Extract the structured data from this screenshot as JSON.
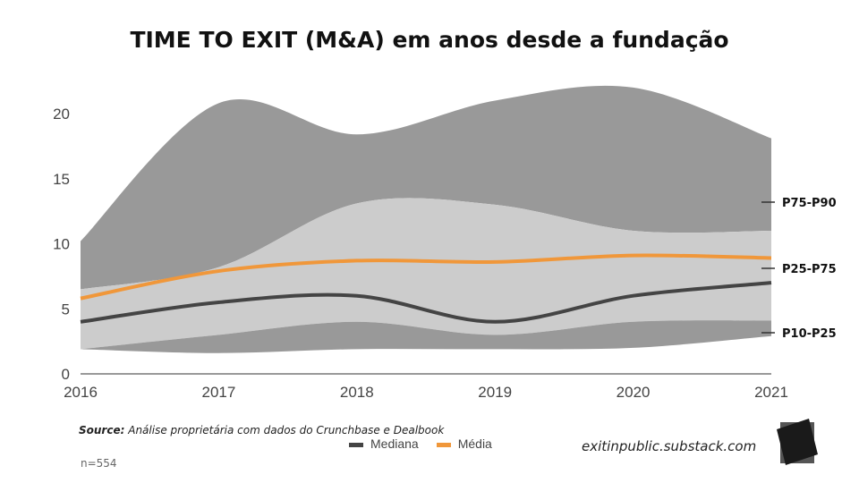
{
  "chart_data": {
    "type": "area",
    "title": "TIME TO EXIT (M&A) em anos desde a fundação",
    "x": [
      2016,
      2017,
      2018,
      2019,
      2020,
      2021
    ],
    "ylim": [
      0,
      22
    ],
    "yticks": [
      0,
      5,
      10,
      15,
      20
    ],
    "bands": [
      {
        "name": "P75-P90",
        "lower": [
          6.5,
          8.2,
          13.1,
          13.0,
          11.0,
          11.0
        ],
        "upper": [
          10.2,
          20.8,
          18.4,
          21.0,
          22.0,
          18.1
        ],
        "color": "#999999"
      },
      {
        "name": "P25-P75",
        "lower": [
          1.9,
          3.0,
          4.0,
          3.0,
          4.0,
          4.1
        ],
        "upper": [
          6.5,
          8.2,
          13.1,
          13.0,
          11.0,
          11.0
        ],
        "color": "#cccccc"
      },
      {
        "name": "P10-P25",
        "lower": [
          1.9,
          1.6,
          1.9,
          1.9,
          2.0,
          2.9
        ],
        "upper": [
          1.9,
          3.0,
          4.0,
          3.0,
          4.0,
          4.1
        ],
        "color": "#999999"
      }
    ],
    "series": [
      {
        "name": "Mediana",
        "values": [
          4.0,
          5.5,
          6.0,
          4.0,
          6.0,
          7.0
        ],
        "color": "#444444"
      },
      {
        "name": "Média",
        "values": [
          5.8,
          7.9,
          8.7,
          8.6,
          9.1,
          8.9
        ],
        "color": "#f0973a"
      }
    ],
    "legend": "bottom"
  },
  "footer": {
    "source_label": "Source:",
    "source_text": "Análise proprietária com dados do Crunchbase e Dealbook",
    "n": "n=554",
    "site": "exitinpublic.substack.com"
  }
}
